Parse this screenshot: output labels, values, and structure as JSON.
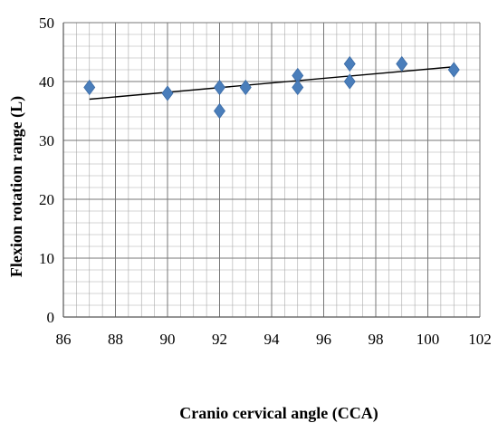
{
  "chart_data": {
    "type": "scatter",
    "xlabel": "Cranio cervical angle (CCA)",
    "ylabel": "Flexion rotation range (L)",
    "xlim": [
      86,
      102
    ],
    "ylim": [
      0,
      50
    ],
    "x_ticks": [
      86,
      88,
      90,
      92,
      94,
      96,
      98,
      100,
      102
    ],
    "y_ticks": [
      0,
      10,
      20,
      30,
      40,
      50
    ],
    "grid": true,
    "marker_color": "#4a7ebb",
    "trendline_color": "#000000",
    "points": [
      {
        "x": 87,
        "y": 39
      },
      {
        "x": 90,
        "y": 38
      },
      {
        "x": 92,
        "y": 39
      },
      {
        "x": 92,
        "y": 35
      },
      {
        "x": 93,
        "y": 39
      },
      {
        "x": 95,
        "y": 41
      },
      {
        "x": 95,
        "y": 39
      },
      {
        "x": 97,
        "y": 43
      },
      {
        "x": 97,
        "y": 40
      },
      {
        "x": 99,
        "y": 43
      },
      {
        "x": 101,
        "y": 42
      }
    ],
    "trendline": {
      "x": [
        87,
        101
      ],
      "y": [
        37,
        42.5
      ]
    }
  }
}
